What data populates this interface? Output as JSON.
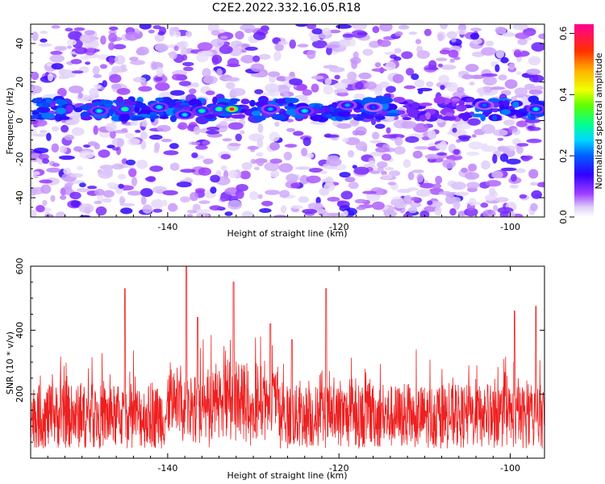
{
  "title": "C2E2.2022.332.16.05.R18",
  "chart_data": [
    {
      "type": "heatmap",
      "xlabel": "Height of straight line (km)",
      "ylabel": "Frequency (Hz)",
      "xlim": [
        -156,
        -96
      ],
      "ylim": [
        -50,
        50
      ],
      "x_ticks": [
        -140,
        -120,
        -100
      ],
      "y_ticks": [
        -40,
        -20,
        0,
        20,
        40
      ],
      "colorbar": {
        "label": "Normalized spectral amplitude",
        "range": [
          0,
          0.63
        ],
        "ticks": [
          0.0,
          0.2,
          0.4,
          0.6
        ],
        "colormap": [
          "#ffffff",
          "#c8a8f0",
          "#8a2be2",
          "#3a00ff",
          "#0040ff",
          "#00d0ff",
          "#00ff80",
          "#a0ff00",
          "#ffff00",
          "#ff8000",
          "#ff0000",
          "#ff00a0"
        ]
      },
      "band": {
        "center_hz": 6,
        "width_hz": 10,
        "peak_x_km": -132.5,
        "peak_value": 0.62,
        "hotspots": [
          {
            "x": -148,
            "y": 5,
            "v": 0.3
          },
          {
            "x": -145,
            "y": 6,
            "v": 0.35
          },
          {
            "x": -141,
            "y": 7,
            "v": 0.3
          },
          {
            "x": -138,
            "y": 3,
            "v": 0.28
          },
          {
            "x": -136,
            "y": 5,
            "v": 0.32
          },
          {
            "x": -134,
            "y": 6,
            "v": 0.35
          },
          {
            "x": -132.5,
            "y": 6,
            "v": 0.62
          },
          {
            "x": -128,
            "y": 6,
            "v": 0.25
          },
          {
            "x": -124,
            "y": 5,
            "v": 0.3
          },
          {
            "x": -119,
            "y": 8,
            "v": 0.25
          },
          {
            "x": -116,
            "y": 7,
            "v": 0.2
          },
          {
            "x": -103,
            "y": 8,
            "v": 0.22
          },
          {
            "x": -97,
            "y": 6,
            "v": 0.3
          }
        ]
      }
    },
    {
      "type": "line",
      "xlabel": "Height of straight line (km)",
      "ylabel": "SNR (10 * v/v)",
      "xlim": [
        -156,
        -96
      ],
      "ylim": [
        0,
        600
      ],
      "x_ticks": [
        -140,
        -120,
        -100
      ],
      "y_ticks": [
        200,
        400,
        600
      ],
      "color": "#ee2020",
      "n_points": 1800,
      "baseline_snr": 120,
      "noise_spread_snr": 140,
      "peaks": [
        {
          "x": -145,
          "y": 530
        },
        {
          "x": -137.8,
          "y": 600
        },
        {
          "x": -136.5,
          "y": 440
        },
        {
          "x": -132.3,
          "y": 550
        },
        {
          "x": -128,
          "y": 420
        },
        {
          "x": -125.5,
          "y": 370
        },
        {
          "x": -121.5,
          "y": 530
        },
        {
          "x": -99.5,
          "y": 460
        },
        {
          "x": -97,
          "y": 475
        }
      ]
    }
  ]
}
